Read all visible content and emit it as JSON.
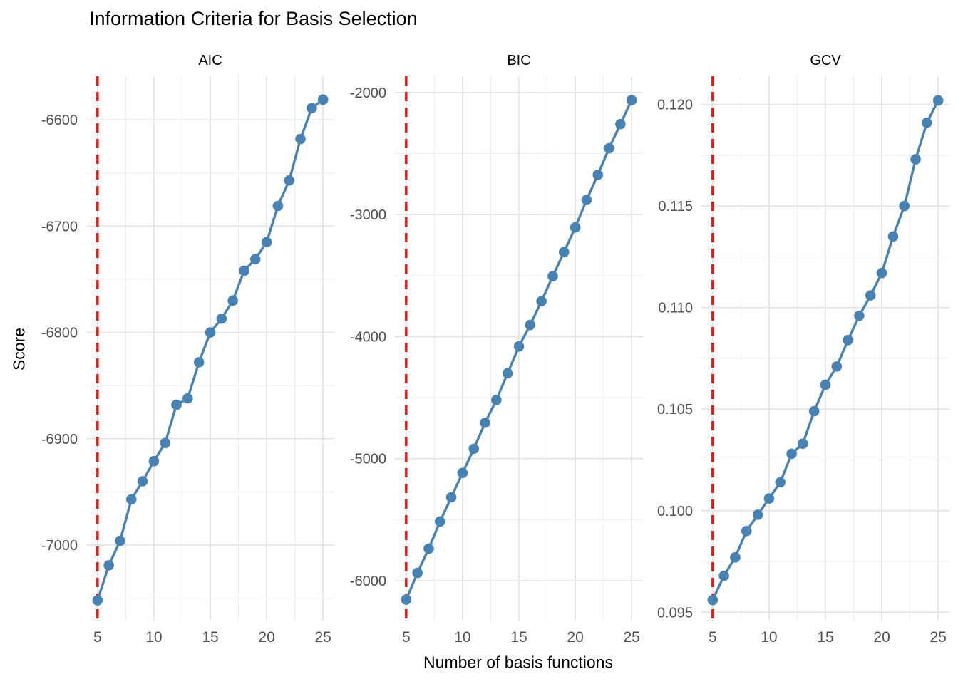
{
  "chart_data": {
    "type": "line",
    "title": "Information Criteria for Basis Selection",
    "xlabel": "Number of basis functions",
    "ylabel": "Score",
    "x": [
      5,
      6,
      7,
      8,
      9,
      10,
      11,
      12,
      13,
      14,
      15,
      16,
      17,
      18,
      19,
      20,
      21,
      22,
      23,
      24,
      25
    ],
    "xlim": [
      4,
      26
    ],
    "xticks": [
      {
        "value": 5,
        "label": "5"
      },
      {
        "value": 10,
        "label": "10"
      },
      {
        "value": 15,
        "label": "15"
      },
      {
        "value": 20,
        "label": "20"
      },
      {
        "value": 25,
        "label": "25"
      }
    ],
    "xticks_minor": [
      7.5,
      12.5,
      17.5,
      22.5
    ],
    "reference_line_x": 5,
    "grid": true,
    "legend": "none",
    "facets": [
      {
        "label": "AIC",
        "ylim": [
          -7071,
          -6559
        ],
        "yticks": [
          {
            "value": -6600,
            "label": "-6600"
          },
          {
            "value": -6700,
            "label": "-6700"
          },
          {
            "value": -6800,
            "label": "-6800"
          },
          {
            "value": -6900,
            "label": "-6900"
          },
          {
            "value": -7000,
            "label": "-7000"
          }
        ],
        "yticks_minor": [
          -6650,
          -6750,
          -6850,
          -6950,
          -7050
        ],
        "values": [
          -7052,
          -7019,
          -6996,
          -6957,
          -6940,
          -6921,
          -6904,
          -6868,
          -6862,
          -6828,
          -6800,
          -6787,
          -6770,
          -6742,
          -6731,
          -6715,
          -6681,
          -6657,
          -6618,
          -6589,
          -6581
        ]
      },
      {
        "label": "BIC",
        "ylim": [
          -6327,
          -1866
        ],
        "yticks": [
          {
            "value": -2000,
            "label": "-2000"
          },
          {
            "value": -3000,
            "label": "-3000"
          },
          {
            "value": -4000,
            "label": "-4000"
          },
          {
            "value": -5000,
            "label": "-5000"
          },
          {
            "value": -6000,
            "label": "-6000"
          }
        ],
        "yticks_minor": [
          -2500,
          -3500,
          -4500,
          -5500
        ],
        "values": [
          -6155,
          -5936,
          -5738,
          -5515,
          -5317,
          -5117,
          -4919,
          -4706,
          -4519,
          -4300,
          -4080,
          -3904,
          -3709,
          -3505,
          -3307,
          -3105,
          -2880,
          -2674,
          -2456,
          -2258,
          -2062
        ]
      },
      {
        "label": "GCV",
        "ylim": [
          0.09459,
          0.12139
        ],
        "yticks": [
          {
            "value": 0.12,
            "label": "0.120"
          },
          {
            "value": 0.115,
            "label": "0.115"
          },
          {
            "value": 0.11,
            "label": "0.110"
          },
          {
            "value": 0.105,
            "label": "0.105"
          },
          {
            "value": 0.1,
            "label": "0.100"
          },
          {
            "value": 0.095,
            "label": "0.095"
          }
        ],
        "yticks_minor": [
          0.1175,
          0.1125,
          0.1075,
          0.1025,
          0.0975
        ],
        "values": [
          0.0956,
          0.0968,
          0.0977,
          0.099,
          0.0998,
          0.1006,
          0.1014,
          0.1028,
          0.1033,
          0.1049,
          0.1062,
          0.1071,
          0.1084,
          0.1096,
          0.1106,
          0.1117,
          0.1135,
          0.115,
          0.1173,
          0.1191,
          0.1202
        ]
      }
    ],
    "style": {
      "line_color": "#4682B4",
      "point_color": "#4682B4",
      "ref_line_color": "#FC0F0F",
      "grid_major_color": "#E3E3E3",
      "grid_minor_color": "#EDEDED",
      "tick_label_color": "#4D4D4D",
      "text_color": "#000000"
    }
  }
}
